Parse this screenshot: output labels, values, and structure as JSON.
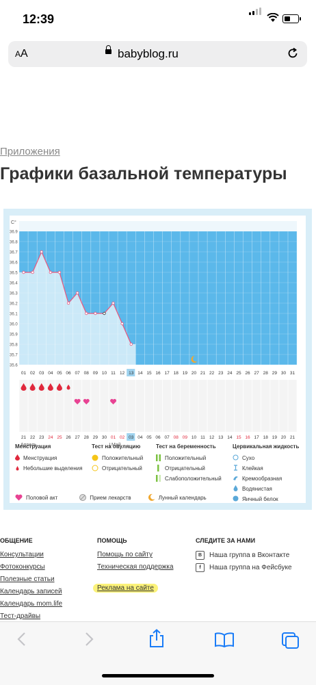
{
  "status": {
    "time": "12:39"
  },
  "browser": {
    "text_size_label": "AA",
    "domain": "babyblog.ru"
  },
  "page": {
    "breadcrumb": "Приложения",
    "title": "Графики базальной температуры"
  },
  "chart_data": {
    "type": "line",
    "ylabel": "C°",
    "yticks": [
      "36.9",
      "36.8",
      "36.7",
      "36.6",
      "36.5",
      "36.4",
      "36.3",
      "36.2",
      "36.1",
      "36.0",
      "35.9",
      "35.8",
      "35.7",
      "35.6"
    ],
    "ylim": [
      35.6,
      36.9
    ],
    "x_days": [
      "01",
      "02",
      "03",
      "04",
      "05",
      "06",
      "07",
      "08",
      "09",
      "10",
      "11",
      "12",
      "13",
      "14",
      "15",
      "16",
      "17",
      "18",
      "19",
      "20",
      "21",
      "22",
      "23",
      "24",
      "25",
      "26",
      "27",
      "28",
      "29",
      "30",
      "31"
    ],
    "x_dates": [
      "21",
      "22",
      "23",
      "24",
      "25",
      "26",
      "27",
      "28",
      "29",
      "30",
      "01",
      "02",
      "03",
      "04",
      "05",
      "06",
      "07",
      "08",
      "09",
      "10",
      "11",
      "12",
      "13",
      "14",
      "15",
      "16",
      "17",
      "18",
      "19",
      "20",
      "21"
    ],
    "red_dates": [
      "24",
      "25",
      "01",
      "02",
      "08",
      "09",
      "15",
      "16"
    ],
    "month_labels": [
      "Апрель",
      "Май"
    ],
    "current_day": "13",
    "series": [
      {
        "values": [
          36.5,
          36.5,
          36.7,
          36.5,
          36.5,
          36.2,
          36.3,
          36.1,
          36.1,
          36.1,
          36.2,
          36.0,
          35.8
        ]
      }
    ],
    "menstruation_days": [
      1,
      2,
      3,
      4,
      5
    ],
    "spotting_days": [
      6
    ],
    "intercourse_days": [
      7,
      8,
      11
    ],
    "moon_day": 20,
    "colors": {
      "background": "#5bb8ea",
      "fill": "#cbe9f8",
      "line": "#e8577e",
      "marker": "#e8577e",
      "today": "#9fd3ef"
    }
  },
  "legend": {
    "menstruation": {
      "title": "Менструация",
      "items": [
        "Менструация",
        "Небольшие выделения"
      ]
    },
    "ovulation": {
      "title": "Тест на овуляцию",
      "items": [
        "Положительный",
        "Отрицательный"
      ]
    },
    "pregnancy": {
      "title": "Тест на беременность",
      "items": [
        "Положительный",
        "Отрицательный",
        "Слабоположительный"
      ]
    },
    "cervical": {
      "title": "Цервикальная жидкость",
      "items": [
        "Сухо",
        "Клейкая",
        "Кремообразная",
        "Водянистая",
        "Яичный белок"
      ]
    },
    "bottom": [
      "Половой акт",
      "Прием лекарств",
      "Лунный календарь"
    ]
  },
  "footer": {
    "col1": {
      "title": "ОБЩЕНИЕ",
      "links": [
        "Консультации",
        "Фотоконкурсы",
        "Полезные статьи",
        "Календарь записей",
        "Календарь mom.life",
        "Тест-драйвы"
      ]
    },
    "col2": {
      "title": "ПОМОЩЬ",
      "links": [
        "Помощь по сайту",
        "Техническая поддержка",
        "Реклама на сайте"
      ]
    },
    "col3": {
      "title": "СЛЕДИТЕ ЗА НАМИ",
      "links": [
        "Наша группа в Вконтакте",
        "Наша группа на Фейсбуке"
      ]
    }
  },
  "icons": [
    "back-icon",
    "forward-icon",
    "share-icon",
    "bookmarks-icon",
    "tabs-icon",
    "reload-icon",
    "lock-icon"
  ]
}
